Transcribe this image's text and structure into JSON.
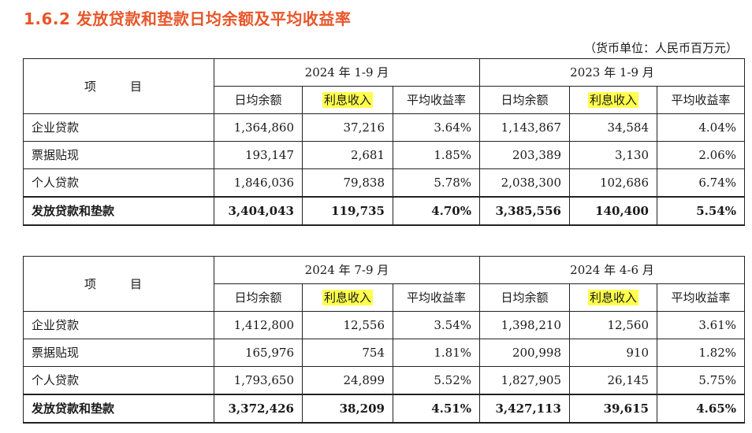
{
  "title": "1.6.2  发放贷款和垫款日均余额及平均收益率",
  "unit_note": "（货币单位：人民币百万元）",
  "item_header": "项　目",
  "sub_headers": [
    "日均余额",
    "利息收入",
    "平均收益率"
  ],
  "tables": [
    {
      "period_a": "2024 年 1-9 月",
      "period_b": "2023 年 1-9 月",
      "rows": [
        {
          "label": "企业贷款",
          "values": [
            "1,364,860",
            "37,216",
            "3.64%",
            "1,143,867",
            "34,584",
            "4.04%"
          ]
        },
        {
          "label": "票据贴现",
          "values": [
            "193,147",
            "2,681",
            "1.85%",
            "203,389",
            "3,130",
            "2.06%"
          ]
        },
        {
          "label": "个人贷款",
          "values": [
            "1,846,036",
            "79,838",
            "5.78%",
            "2,038,300",
            "102,686",
            "6.74%"
          ]
        },
        {
          "label": "发放贷款和垫款",
          "values": [
            "3,404,043",
            "119,735",
            "4.70%",
            "3,385,556",
            "140,400",
            "5.54%"
          ]
        }
      ]
    },
    {
      "period_a": "2024 年 7-9 月",
      "period_b": "2024 年 4-6 月",
      "rows": [
        {
          "label": "企业贷款",
          "values": [
            "1,412,800",
            "12,556",
            "3.54%",
            "1,398,210",
            "12,560",
            "3.61%"
          ]
        },
        {
          "label": "票据贴现",
          "values": [
            "165,976",
            "754",
            "1.81%",
            "200,998",
            "910",
            "1.82%"
          ]
        },
        {
          "label": "个人贷款",
          "values": [
            "1,793,650",
            "24,899",
            "5.52%",
            "1,827,905",
            "26,145",
            "5.75%"
          ]
        },
        {
          "label": "发放贷款和垫款",
          "values": [
            "3,372,426",
            "38,209",
            "4.51%",
            "3,427,113",
            "39,615",
            "4.65%"
          ]
        }
      ]
    }
  ],
  "colors": {
    "title": "#e8562a",
    "highlight": "#ffff4d"
  }
}
